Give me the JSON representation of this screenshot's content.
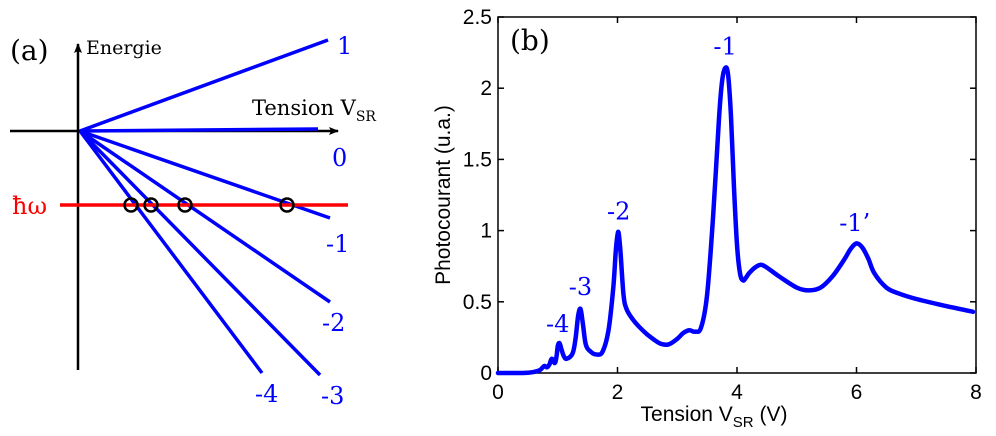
{
  "panel_a": {
    "label": "(a)",
    "y_axis_label": "Energie",
    "x_axis_label": "Tension V",
    "x_axis_sub": "SR",
    "hbar_omega": "ħω",
    "lines": [
      {
        "label": "1"
      },
      {
        "label": "0"
      },
      {
        "label": "-1"
      },
      {
        "label": "-2"
      },
      {
        "label": "-3"
      },
      {
        "label": "-4"
      }
    ],
    "colors": {
      "lines": "#0000ff",
      "photon": "#ff0000",
      "circles": "#000000"
    }
  },
  "panel_b": {
    "label": "(b)",
    "peak_labels": [
      {
        "text": "-4",
        "x": 1.0
      },
      {
        "text": "-3",
        "x": 1.38
      },
      {
        "text": "-2",
        "x": 2.02
      },
      {
        "text": "-1",
        "x": 3.8
      },
      {
        "text": "-1’",
        "x": 5.97
      }
    ]
  },
  "chart_data": {
    "type": "line",
    "xlabel": "Tension V",
    "xlabel_sub": "SR",
    "xlabel_unit": " (V)",
    "ylabel": "Photocourant (u.a.)",
    "xlim": [
      0,
      8
    ],
    "ylim": [
      0,
      2.5
    ],
    "xticks": [
      "0",
      "2",
      "4",
      "6",
      "8"
    ],
    "yticks": [
      "0",
      "0.5",
      "1",
      "1.5",
      "2",
      "2.5"
    ],
    "color": "#0000ff",
    "series": [
      {
        "x": [
          0,
          0.3,
          0.5,
          0.6,
          0.7,
          0.75,
          0.78,
          0.82,
          0.86,
          0.9,
          0.95,
          0.98,
          1.0,
          1.03,
          1.06,
          1.1,
          1.15,
          1.25,
          1.3,
          1.34,
          1.38,
          1.42,
          1.47,
          1.55,
          1.65,
          1.75,
          1.85,
          1.93,
          1.97,
          2.0,
          2.02,
          2.05,
          2.1,
          2.15,
          2.25,
          2.35,
          2.5,
          2.7,
          2.85,
          3.0,
          3.1,
          3.2,
          3.3,
          3.4,
          3.5,
          3.6,
          3.7,
          3.75,
          3.8,
          3.85,
          3.9,
          3.95,
          4.0,
          4.05,
          4.1,
          4.15,
          4.2,
          4.3,
          4.4,
          4.5,
          4.7,
          5.0,
          5.2,
          5.4,
          5.6,
          5.8,
          5.9,
          6.0,
          6.1,
          6.2,
          6.3,
          6.5,
          6.7,
          7.0,
          7.5,
          7.95
        ],
        "y": [
          0,
          0,
          0.002,
          0.008,
          0.02,
          0.04,
          0.05,
          0.04,
          0.06,
          0.1,
          0.07,
          0.12,
          0.19,
          0.21,
          0.17,
          0.12,
          0.1,
          0.14,
          0.25,
          0.4,
          0.45,
          0.35,
          0.2,
          0.15,
          0.13,
          0.15,
          0.3,
          0.6,
          0.85,
          0.97,
          0.98,
          0.85,
          0.55,
          0.45,
          0.38,
          0.33,
          0.27,
          0.21,
          0.2,
          0.24,
          0.28,
          0.3,
          0.29,
          0.32,
          0.55,
          1.1,
          1.8,
          2.05,
          2.14,
          2.1,
          1.8,
          1.3,
          0.9,
          0.7,
          0.65,
          0.67,
          0.7,
          0.74,
          0.76,
          0.74,
          0.68,
          0.6,
          0.58,
          0.6,
          0.68,
          0.8,
          0.87,
          0.91,
          0.88,
          0.8,
          0.7,
          0.6,
          0.56,
          0.52,
          0.47,
          0.43
        ]
      }
    ]
  }
}
